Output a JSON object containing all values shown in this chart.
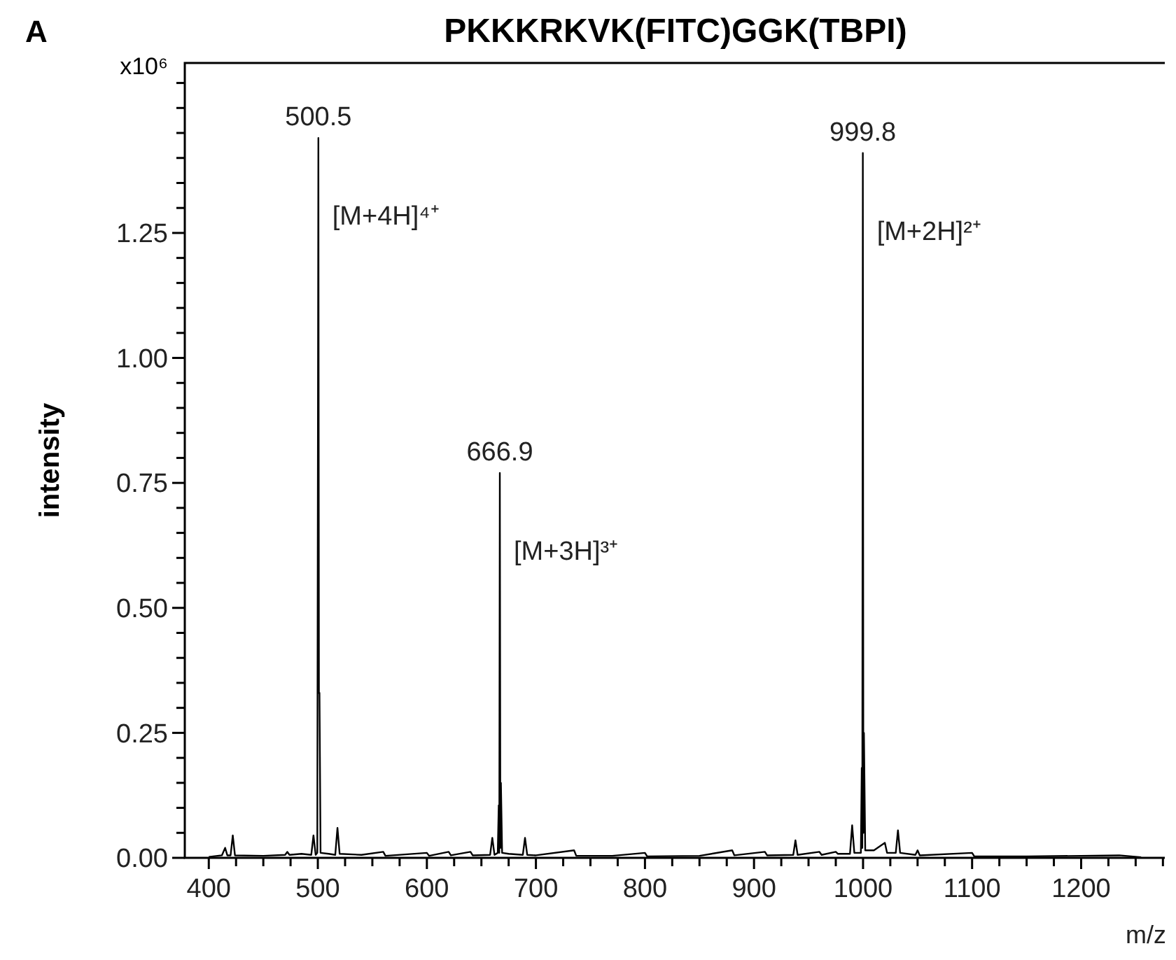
{
  "chart_data": {
    "type": "line",
    "title": "PKKKRKVK(FITC)GGK(TBPI)",
    "xlabel": "m/z",
    "ylabel": "intensity",
    "annotations": [
      "A",
      "x10⁶",
      {
        "text": "500.5",
        "x": 500.5,
        "y": 1.44
      },
      {
        "text": "666.9",
        "x": 666.9,
        "y": 0.77
      },
      {
        "text": "999.8",
        "x": 999.8,
        "y": 1.41
      },
      "[M+4H]⁴⁺",
      "[M+3H]³⁺",
      "[M+2H]²⁺"
    ],
    "x": [
      400,
      412,
      415,
      417,
      420,
      422,
      424,
      450,
      470,
      472,
      474,
      485,
      494,
      496,
      498,
      499.5,
      500.5,
      501,
      501.5,
      502.5,
      510,
      516,
      518,
      520,
      540,
      560,
      562,
      600,
      602,
      620,
      622,
      640,
      642,
      658,
      660,
      662,
      665,
      665.9,
      666.4,
      666.9,
      667.4,
      667.9,
      669,
      675,
      688,
      690,
      692,
      700,
      735,
      737,
      770,
      800,
      802,
      850,
      880,
      882,
      910,
      912,
      936,
      938,
      940,
      960,
      962,
      975,
      977,
      988,
      990,
      992,
      998,
      998.8,
      999.3,
      999.8,
      1000.3,
      1000.8,
      1002,
      1010,
      1020,
      1022,
      1030,
      1032,
      1034,
      1048,
      1050,
      1052,
      1100,
      1102,
      1150,
      1200,
      1235,
      1255
    ],
    "series": [
      {
        "color": "#000000",
        "values": [
          0.002,
          0.005,
          0.02,
          0.005,
          0.005,
          0.045,
          0.005,
          0.004,
          0.006,
          0.012,
          0.006,
          0.008,
          0.006,
          0.045,
          0.006,
          0.01,
          1.44,
          0.33,
          0.33,
          0.01,
          0.008,
          0.006,
          0.06,
          0.008,
          0.006,
          0.012,
          0.004,
          0.01,
          0.004,
          0.012,
          0.005,
          0.012,
          0.005,
          0.006,
          0.04,
          0.006,
          0.01,
          0.105,
          0.01,
          0.77,
          0.02,
          0.15,
          0.01,
          0.008,
          0.006,
          0.04,
          0.006,
          0.005,
          0.015,
          0.004,
          0.004,
          0.01,
          0.003,
          0.004,
          0.015,
          0.005,
          0.012,
          0.005,
          0.006,
          0.035,
          0.006,
          0.012,
          0.006,
          0.012,
          0.008,
          0.008,
          0.065,
          0.01,
          0.01,
          0.18,
          0.02,
          1.41,
          0.05,
          0.25,
          0.015,
          0.015,
          0.03,
          0.01,
          0.01,
          0.055,
          0.01,
          0.006,
          0.015,
          0.005,
          0.01,
          0.003,
          0.003,
          0.004,
          0.005,
          0.001
        ]
      }
    ],
    "xlim": [
      378,
      1278
    ],
    "xticks": [
      400,
      {
        "value": 425,
        "label": null
      },
      {
        "value": 450,
        "label": null
      },
      {
        "value": 475,
        "label": null
      },
      500,
      {
        "value": 525,
        "label": null
      },
      {
        "value": 550,
        "label": null
      },
      {
        "value": 575,
        "label": null
      },
      600,
      {
        "value": 625,
        "label": null
      },
      {
        "value": 650,
        "label": null
      },
      {
        "value": 675,
        "label": null
      },
      700,
      {
        "value": 725,
        "label": null
      },
      {
        "value": 750,
        "label": null
      },
      {
        "value": 775,
        "label": null
      },
      800,
      {
        "value": 825,
        "label": null
      },
      {
        "value": 850,
        "label": null
      },
      {
        "value": 875,
        "label": null
      },
      900,
      {
        "value": 925,
        "label": null
      },
      {
        "value": 950,
        "label": null
      },
      {
        "value": 975,
        "label": null
      },
      1000,
      {
        "value": 1025,
        "label": null
      },
      {
        "value": 1050,
        "label": null
      },
      {
        "value": 1075,
        "label": null
      },
      1100,
      {
        "value": 1125,
        "label": null
      },
      {
        "value": 1150,
        "label": null
      },
      {
        "value": 1175,
        "label": null
      },
      1200,
      {
        "value": 1225,
        "label": null
      },
      {
        "value": 1250,
        "label": null
      },
      {
        "value": 1275,
        "label": null
      }
    ],
    "ylim": [
      0,
      1.59
    ],
    "yticks": [
      {
        "value": 0,
        "label": "0.00"
      },
      {
        "value": 0.05,
        "label": null
      },
      {
        "value": 0.1,
        "label": null
      },
      {
        "value": 0.15,
        "label": null
      },
      {
        "value": 0.2,
        "label": null
      },
      {
        "value": 0.25,
        "label": "0.25"
      },
      {
        "value": 0.3,
        "label": null
      },
      {
        "value": 0.35,
        "label": null
      },
      {
        "value": 0.4,
        "label": null
      },
      {
        "value": 0.45,
        "label": null
      },
      {
        "value": 0.5,
        "label": "0.50"
      },
      {
        "value": 0.55,
        "label": null
      },
      {
        "value": 0.6,
        "label": null
      },
      {
        "value": 0.65,
        "label": null
      },
      {
        "value": 0.7,
        "label": null
      },
      {
        "value": 0.75,
        "label": "0.75"
      },
      {
        "value": 0.8,
        "label": null
      },
      {
        "value": 0.85,
        "label": null
      },
      {
        "value": 0.9,
        "label": null
      },
      {
        "value": 0.95,
        "label": null
      },
      {
        "value": 1,
        "label": "1.00"
      },
      {
        "value": 1.05,
        "label": null
      },
      {
        "value": 1.1,
        "label": null
      },
      {
        "value": 1.15,
        "label": null
      },
      {
        "value": 1.2,
        "label": null
      },
      {
        "value": 1.25,
        "label": "1.25"
      },
      {
        "value": 1.3,
        "label": null
      },
      {
        "value": 1.35,
        "label": null
      },
      {
        "value": 1.4,
        "label": null
      },
      {
        "value": 1.45,
        "label": null
      },
      {
        "value": 1.5,
        "label": null
      },
      {
        "value": 1.55,
        "label": null
      }
    ]
  }
}
